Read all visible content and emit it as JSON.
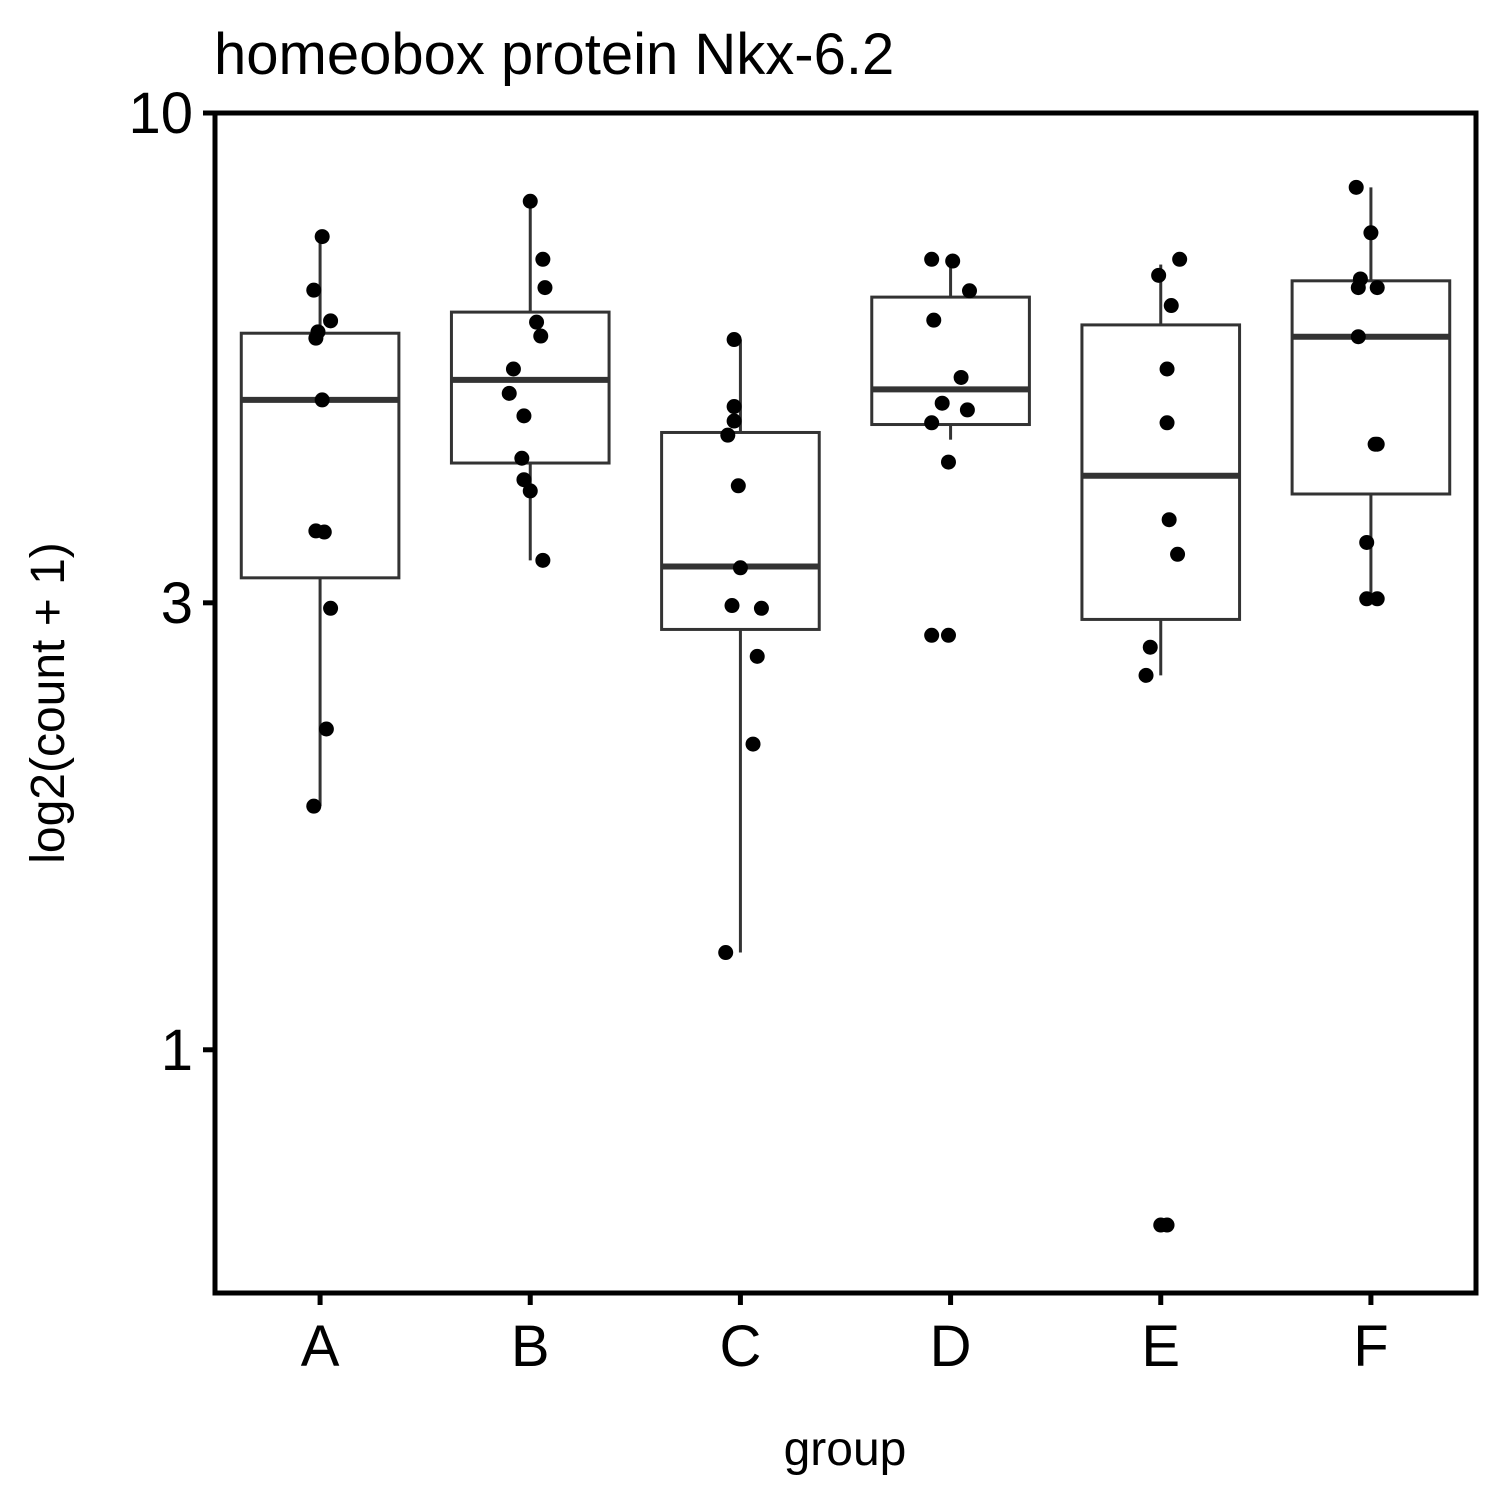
{
  "chart_data": {
    "type": "box",
    "title": "homeobox protein Nkx-6.2",
    "xlabel": "group",
    "ylabel": "log2(count + 1)",
    "yscale": "log",
    "ylim": [
      0.55,
      10
    ],
    "yticks": [
      {
        "value": 1,
        "label": "1"
      },
      {
        "value": 3,
        "label": "3"
      },
      {
        "value": 10,
        "label": "10"
      }
    ],
    "grid": false,
    "categories": [
      "A",
      "B",
      "C",
      "D",
      "E",
      "F"
    ],
    "boxes": [
      {
        "group": "A",
        "whisker_low": 1.82,
        "q1": 3.19,
        "median": 4.94,
        "q3": 5.82,
        "whisker_high": 7.38
      },
      {
        "group": "B",
        "whisker_low": 3.33,
        "q1": 4.23,
        "median": 5.19,
        "q3": 6.13,
        "whisker_high": 8.05
      },
      {
        "group": "C",
        "whisker_low": 1.27,
        "q1": 2.81,
        "median": 3.28,
        "q3": 4.56,
        "whisker_high": 5.73
      },
      {
        "group": "D",
        "whisker_low": 4.48,
        "q1": 4.65,
        "median": 5.07,
        "q3": 6.36,
        "whisker_high": 6.89
      },
      {
        "group": "E",
        "whisker_low": 2.51,
        "q1": 2.88,
        "median": 4.1,
        "q3": 5.94,
        "whisker_high": 6.89
      },
      {
        "group": "F",
        "whisker_low": 3.03,
        "q1": 3.92,
        "median": 5.77,
        "q3": 6.62,
        "whisker_high": 8.33
      }
    ],
    "points": [
      {
        "group": "A",
        "y": [
          7.38,
          6.47,
          6.0,
          5.84,
          5.75,
          4.94,
          3.58,
          3.57,
          2.96,
          2.2,
          1.82
        ]
      },
      {
        "group": "B",
        "y": [
          8.05,
          6.98,
          6.51,
          5.98,
          5.78,
          5.33,
          5.02,
          4.75,
          4.28,
          4.06,
          3.95,
          3.33
        ]
      },
      {
        "group": "C",
        "y": [
          5.73,
          4.86,
          4.69,
          4.53,
          4.0,
          3.27,
          2.98,
          2.96,
          2.63,
          2.12,
          1.27
        ]
      },
      {
        "group": "D",
        "y": [
          6.98,
          6.95,
          6.46,
          6.01,
          5.22,
          4.9,
          4.82,
          4.67,
          4.24,
          2.77,
          2.77
        ]
      },
      {
        "group": "E",
        "y": [
          6.98,
          6.71,
          6.23,
          5.33,
          4.67,
          3.68,
          3.38,
          2.69,
          2.51,
          0.65,
          0.65
        ]
      },
      {
        "group": "F",
        "y": [
          8.33,
          7.45,
          6.65,
          6.51,
          6.51,
          5.77,
          4.43,
          4.43,
          3.48,
          3.03,
          3.03
        ]
      }
    ],
    "jitter": [
      {
        "group": "A",
        "dx": [
          0.01,
          -0.03,
          0.05,
          -0.01,
          -0.02,
          0.01,
          -0.02,
          0.02,
          0.05,
          0.03,
          -0.03
        ]
      },
      {
        "group": "B",
        "dx": [
          0.0,
          0.06,
          0.07,
          0.03,
          0.05,
          -0.08,
          -0.1,
          -0.03,
          -0.04,
          -0.03,
          0.0,
          0.06
        ]
      },
      {
        "group": "C",
        "dx": [
          -0.03,
          -0.03,
          -0.03,
          -0.06,
          -0.01,
          0.0,
          -0.04,
          0.1,
          0.08,
          0.06,
          -0.07
        ]
      },
      {
        "group": "D",
        "dx": [
          -0.09,
          0.01,
          0.09,
          -0.08,
          0.05,
          -0.04,
          0.08,
          -0.09,
          -0.01,
          -0.09,
          -0.01
        ]
      },
      {
        "group": "E",
        "dx": [
          0.09,
          -0.01,
          0.05,
          0.03,
          0.03,
          0.04,
          0.08,
          -0.05,
          -0.07,
          0.0,
          0.03
        ]
      },
      {
        "group": "F",
        "dx": [
          -0.07,
          0.0,
          -0.05,
          0.03,
          -0.06,
          -0.06,
          0.02,
          0.03,
          -0.02,
          -0.02,
          0.03
        ]
      }
    ]
  }
}
